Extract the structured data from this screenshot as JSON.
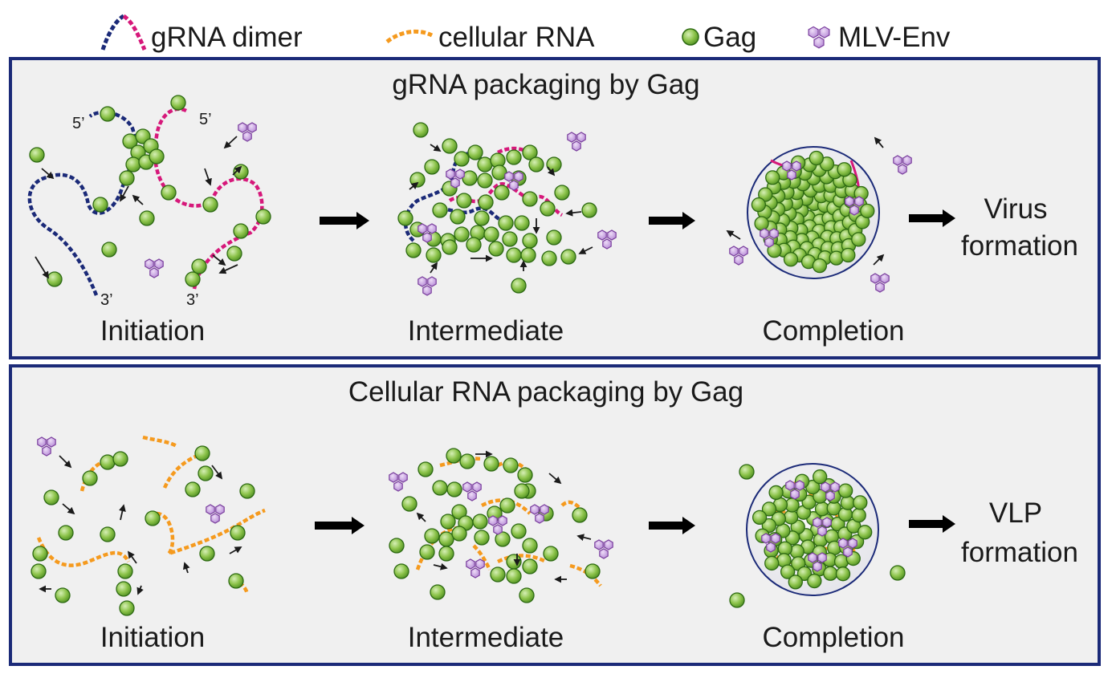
{
  "legend": {
    "grna_dimer": "gRNA dimer",
    "cellular_rna": "cellular RNA",
    "gag": "Gag",
    "mlv_env": "MLV-Env"
  },
  "panel_top": {
    "title": "gRNA packaging by Gag",
    "end_5_left": "5’",
    "end_5_right": "5’",
    "end_3_left": "3’",
    "end_3_right": "3’",
    "stage_initiation": "Initiation",
    "stage_intermediate": "Intermediate",
    "stage_completion": "Completion",
    "outcome_line1": "Virus",
    "outcome_line2": "formation"
  },
  "panel_bottom": {
    "title": "Cellular RNA packaging by Gag",
    "stage_initiation": "Initiation",
    "stage_intermediate": "Intermediate",
    "stage_completion": "Completion",
    "outcome_line1": "VLP",
    "outcome_line2": "formation"
  },
  "colors": {
    "panel_border": "#1b2a78",
    "panel_fill": "#f0f0f0",
    "grna_strand_a": "#1b2a78",
    "grna_strand_b": "#d6187a",
    "cellular_rna": "#f59a1e",
    "gag_fill": "#8cc34a",
    "gag_edge": "#2d6a12",
    "env_fill": "#c59be0",
    "env_edge": "#7a3f9d"
  }
}
